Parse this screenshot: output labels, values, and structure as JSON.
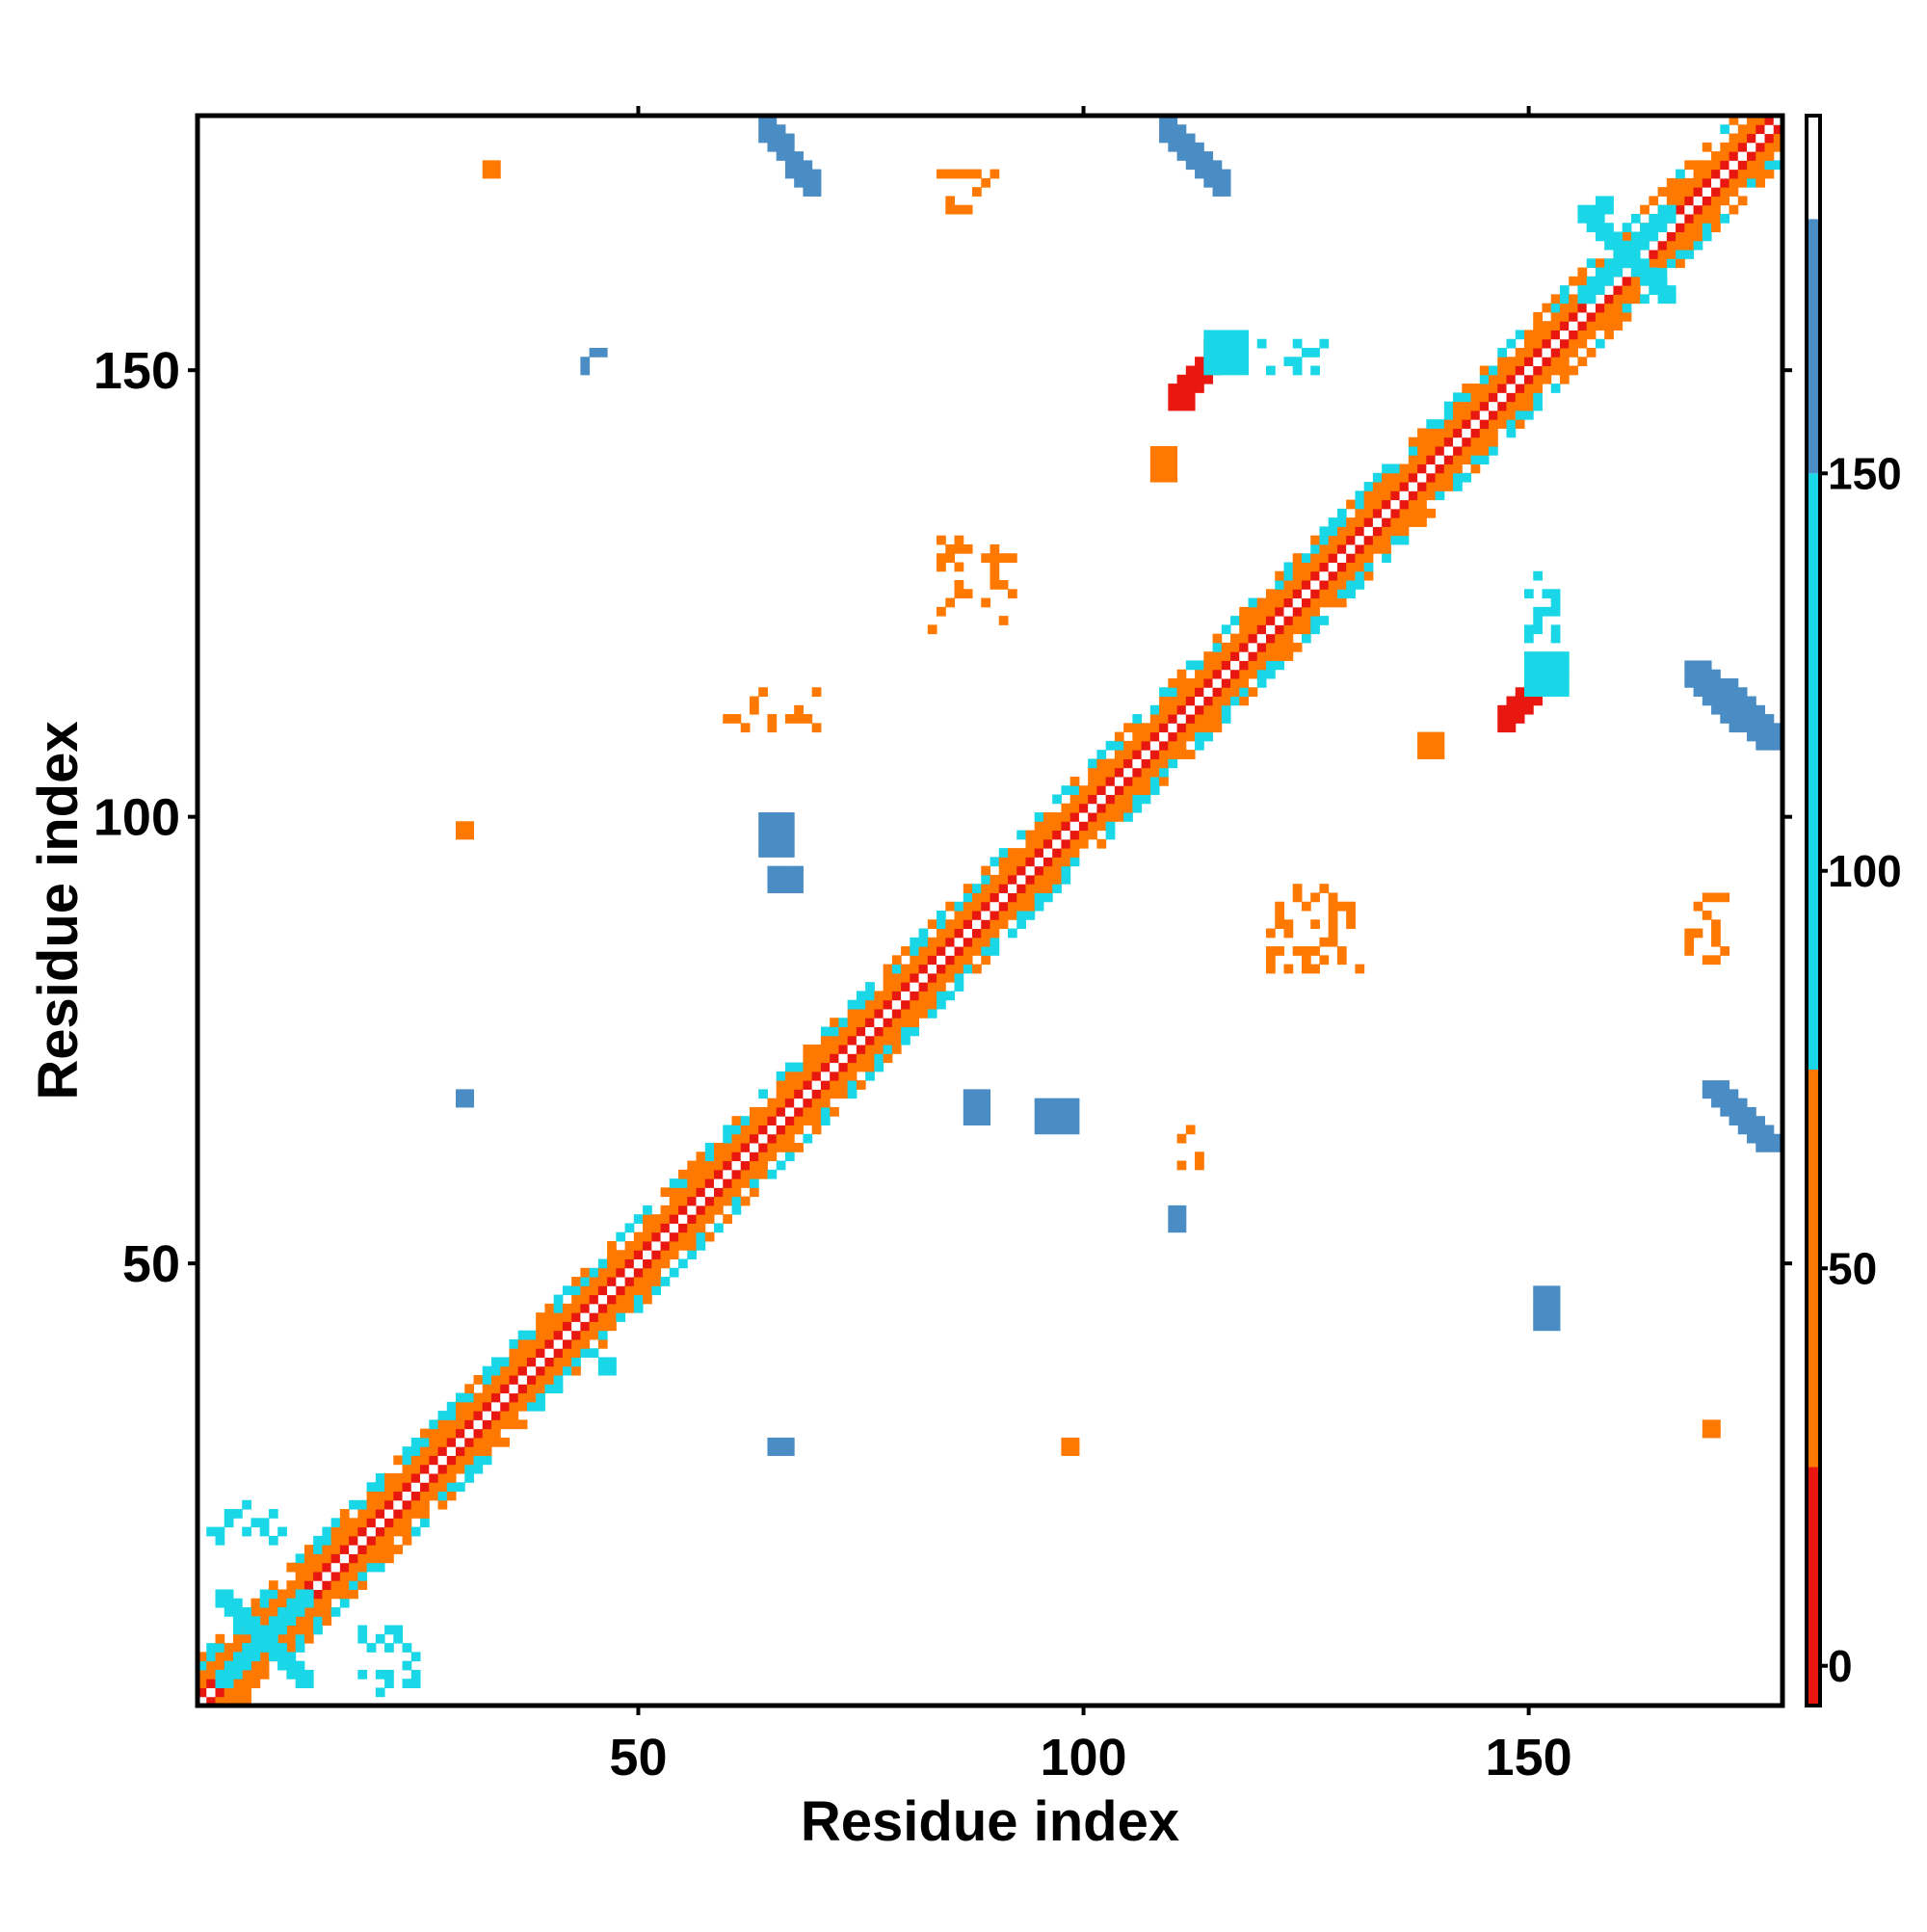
{
  "chart_data": {
    "type": "heatmap",
    "title": "",
    "xlabel": "Residue index",
    "ylabel": "Residue index",
    "xlim": [
      1,
      178
    ],
    "ylim": [
      1,
      178
    ],
    "x_ticks": [
      50,
      100,
      150
    ],
    "y_ticks": [
      50,
      100,
      150
    ],
    "grid": false,
    "legend": "colorbar-right",
    "colorbar": {
      "range": [
        -5,
        195
      ],
      "ticks": [
        0,
        50,
        100,
        150
      ],
      "bands": [
        {
          "from": -5,
          "to": 25,
          "color": "#e8170f"
        },
        {
          "from": 25,
          "to": 75,
          "color": "#ff7800"
        },
        {
          "from": 75,
          "to": 150,
          "color": "#1ad7e8"
        },
        {
          "from": 150,
          "to": 182,
          "color": "#4a8cc4"
        },
        {
          "from": 182,
          "to": 195,
          "color": "#ffffff"
        }
      ]
    },
    "diagonal": {
      "from": 1,
      "to": 178
    },
    "cells": [
      {
        "x": [
          109,
          116
        ],
        "y": [
          170,
          178
        ],
        "value": 170,
        "shape": "anti"
      },
      {
        "x": [
          64,
          70
        ],
        "y": [
          170,
          178
        ],
        "value": 170,
        "shape": "anti"
      },
      {
        "x": [
          168,
          178
        ],
        "y": [
          108,
          117
        ],
        "value": 170,
        "shape": "anti"
      },
      {
        "x": [
          170,
          178
        ],
        "y": [
          63,
          70
        ],
        "value": 170,
        "shape": "anti"
      },
      {
        "x": [
          110,
          116
        ],
        "y": [
          146,
          153
        ],
        "value": 5,
        "shape": "diag"
      },
      {
        "x": [
          147,
          152
        ],
        "y": [
          110,
          116
        ],
        "value": 5,
        "shape": "diag"
      },
      {
        "x": [
          108,
          110
        ],
        "y": [
          138,
          141
        ],
        "value": 50,
        "shape": "box"
      },
      {
        "x": [
          138,
          140
        ],
        "y": [
          107,
          109
        ],
        "value": 50,
        "shape": "box"
      },
      {
        "x": [
          156,
          166
        ],
        "y": [
          158,
          168
        ],
        "value": 120,
        "shape": "x"
      },
      {
        "x": [
          3,
          13
        ],
        "y": [
          3,
          13
        ],
        "value": 120,
        "shape": "x"
      },
      {
        "x": [
          114,
          118
        ],
        "y": [
          150,
          154
        ],
        "value": 120,
        "shape": "box"
      },
      {
        "x": [
          150,
          154
        ],
        "y": [
          114,
          118
        ],
        "value": 120,
        "shape": "box"
      },
      {
        "x": [
          64,
          67
        ],
        "y": [
          96,
          100
        ],
        "value": 160,
        "shape": "box"
      },
      {
        "x": [
          65,
          68
        ],
        "y": [
          92,
          94
        ],
        "value": 160,
        "shape": "box"
      },
      {
        "x": [
          95,
          99
        ],
        "y": [
          65,
          68
        ],
        "value": 160,
        "shape": "box"
      },
      {
        "x": [
          87,
          89
        ],
        "y": [
          66,
          69
        ],
        "value": 160,
        "shape": "box"
      },
      {
        "x": [
          83,
          92
        ],
        "y": [
          121,
          131
        ],
        "value": 40,
        "shape": "scatter"
      },
      {
        "x": [
          121,
          131
        ],
        "y": [
          83,
          92
        ],
        "value": 40,
        "shape": "scatter"
      },
      {
        "x": [
          168,
          172
        ],
        "y": [
          84,
          91
        ],
        "value": 30,
        "shape": "scatter"
      },
      {
        "x": [
          84,
          91
        ],
        "y": [
          168,
          172
        ],
        "value": 30,
        "shape": "scatter"
      },
      {
        "x": [
          2,
          10
        ],
        "y": [
          19,
          23
        ],
        "value": 140,
        "shape": "scatter"
      },
      {
        "x": [
          19,
          25
        ],
        "y": [
          2,
          9
        ],
        "value": 140,
        "shape": "scatter"
      },
      {
        "x": [
          111,
          113
        ],
        "y": [
          60,
          66
        ],
        "value": 30,
        "shape": "scatter"
      },
      {
        "x": [
          60,
          70
        ],
        "y": [
          110,
          114
        ],
        "value": 40,
        "shape": "scatter"
      },
      {
        "x": [
          151,
          153
        ],
        "y": [
          43,
          47
        ],
        "value": 160,
        "shape": "box"
      },
      {
        "x": [
          110,
          111
        ],
        "y": [
          54,
          56
        ],
        "value": 160,
        "shape": "box"
      },
      {
        "x": [
          30,
          31
        ],
        "y": [
          68,
          69
        ],
        "value": 160,
        "shape": "box"
      },
      {
        "x": [
          30,
          31
        ],
        "y": [
          98,
          99
        ],
        "value": 50,
        "shape": "box"
      },
      {
        "x": [
          33,
          34
        ],
        "y": [
          172,
          173
        ],
        "value": 50,
        "shape": "box"
      },
      {
        "x": [
          42,
          46
        ],
        "y": [
          150,
          153
        ],
        "value": 160,
        "shape": "scatter"
      },
      {
        "x": [
          120,
          127
        ],
        "y": [
          150,
          153
        ],
        "value": 140,
        "shape": "scatter"
      },
      {
        "x": [
          150,
          153
        ],
        "y": [
          120,
          127
        ],
        "value": 140,
        "shape": "scatter"
      },
      {
        "x": [
          98,
          99
        ],
        "y": [
          29,
          30
        ],
        "value": 50,
        "shape": "box"
      },
      {
        "x": [
          170,
          171
        ],
        "y": [
          31,
          32
        ],
        "value": 50,
        "shape": "box"
      },
      {
        "x": [
          65,
          67
        ],
        "y": [
          29,
          30
        ],
        "value": 160,
        "shape": "box"
      },
      {
        "x": [
          46,
          47
        ],
        "y": [
          38,
          39
        ],
        "value": 110,
        "shape": "box"
      },
      {
        "x": [
          158,
          159
        ],
        "y": [
          168,
          169
        ],
        "value": 110,
        "shape": "box"
      }
    ]
  }
}
